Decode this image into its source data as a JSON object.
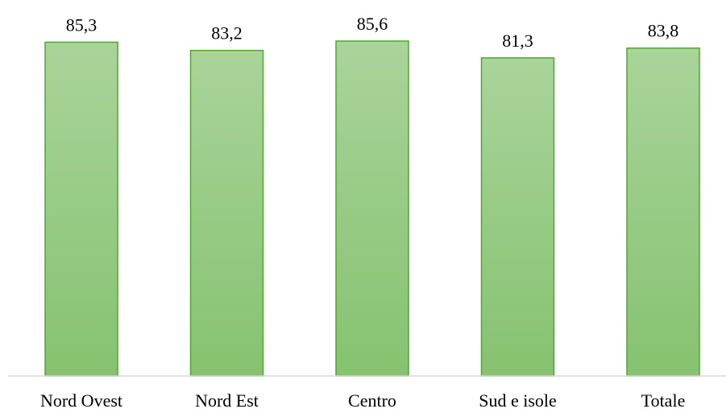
{
  "chart_data": {
    "type": "bar",
    "categories": [
      "Nord Ovest",
      "Nord Est",
      "Centro",
      "Sud e isole",
      "Totale"
    ],
    "values": [
      85.3,
      83.2,
      85.6,
      81.3,
      83.8
    ],
    "value_labels": [
      "85,3",
      "83,2",
      "85,6",
      "81,3",
      "83,8"
    ],
    "title": "",
    "xlabel": "",
    "ylabel": "",
    "ylim": [
      0,
      89
    ],
    "grid": false,
    "legend": "none",
    "bar_fill_top": "#a9d49a",
    "bar_fill_bottom": "#86c270",
    "bar_stroke": "#4ea72e",
    "axis_color": "#d9d9d9"
  }
}
